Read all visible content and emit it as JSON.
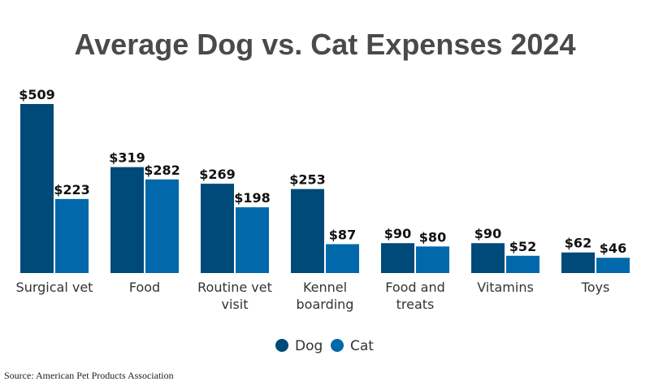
{
  "chart_data": {
    "type": "bar",
    "title": "Average Dog vs. Cat Expenses 2024",
    "categories": [
      [
        "Surgical vet"
      ],
      [
        "Food"
      ],
      [
        "Routine vet",
        "visit"
      ],
      [
        "Kennel",
        "boarding"
      ],
      [
        "Food and",
        "treats"
      ],
      [
        "Vitamins"
      ],
      [
        "Toys"
      ]
    ],
    "series": [
      {
        "name": "Dog",
        "color": "#004a7a",
        "values": [
          509,
          319,
          269,
          253,
          90,
          90,
          62
        ]
      },
      {
        "name": "Cat",
        "color": "#0068ab",
        "values": [
          223,
          282,
          198,
          87,
          80,
          52,
          46
        ]
      }
    ],
    "value_prefix": "$",
    "ylim": [
      0,
      509
    ],
    "grid": false,
    "legend_position": "bottom"
  },
  "source": "Source: American Pet Products Association"
}
